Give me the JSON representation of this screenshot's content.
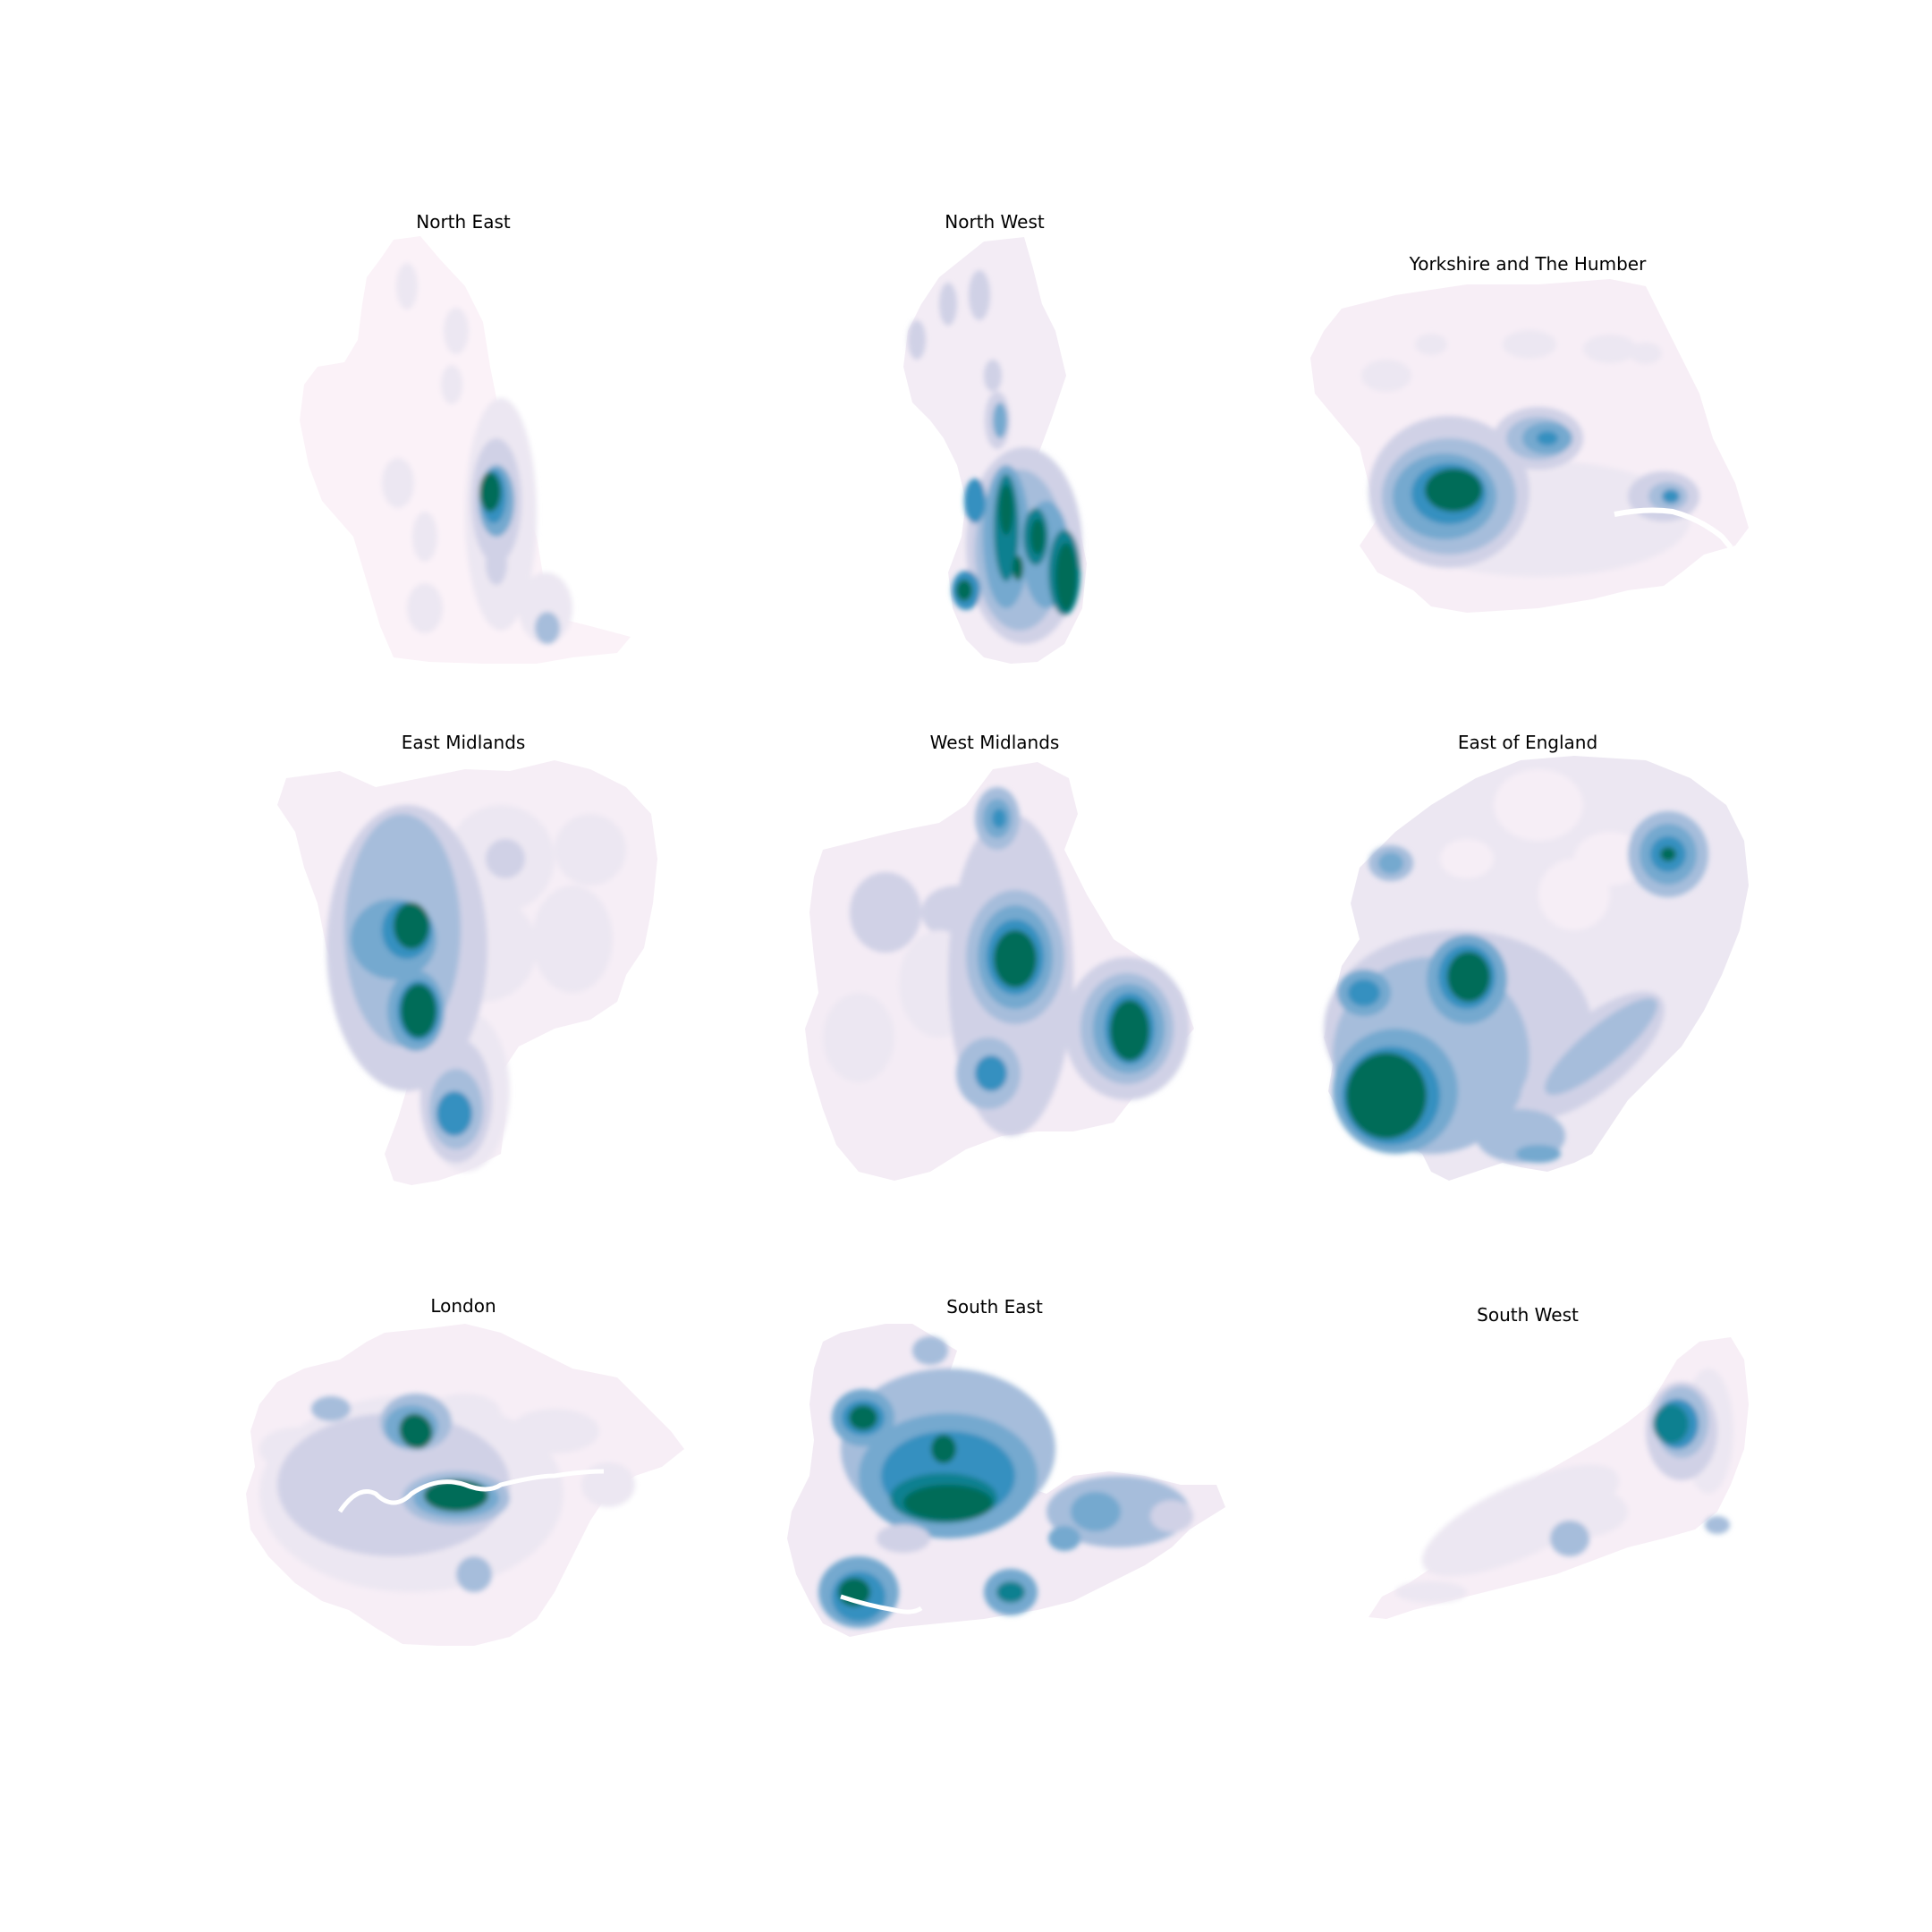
{
  "figure": {
    "colormap": "PuBuGn",
    "colors": [
      "#fff7fb",
      "#ece7f2",
      "#d0d1e6",
      "#a6bddb",
      "#74a9cf",
      "#3690c0",
      "#0c8090",
      "#016c59"
    ],
    "background": "#ffffff",
    "panels": [
      {
        "id": "north-east",
        "title": "North East"
      },
      {
        "id": "north-west",
        "title": "North West"
      },
      {
        "id": "yorkshire",
        "title": "Yorkshire and The Humber"
      },
      {
        "id": "east-midlands",
        "title": "East Midlands"
      },
      {
        "id": "west-midlands",
        "title": "West Midlands"
      },
      {
        "id": "east-of-england",
        "title": "East of England"
      },
      {
        "id": "london",
        "title": "London"
      },
      {
        "id": "south-east",
        "title": "South East"
      },
      {
        "id": "south-west",
        "title": "South West"
      }
    ]
  }
}
